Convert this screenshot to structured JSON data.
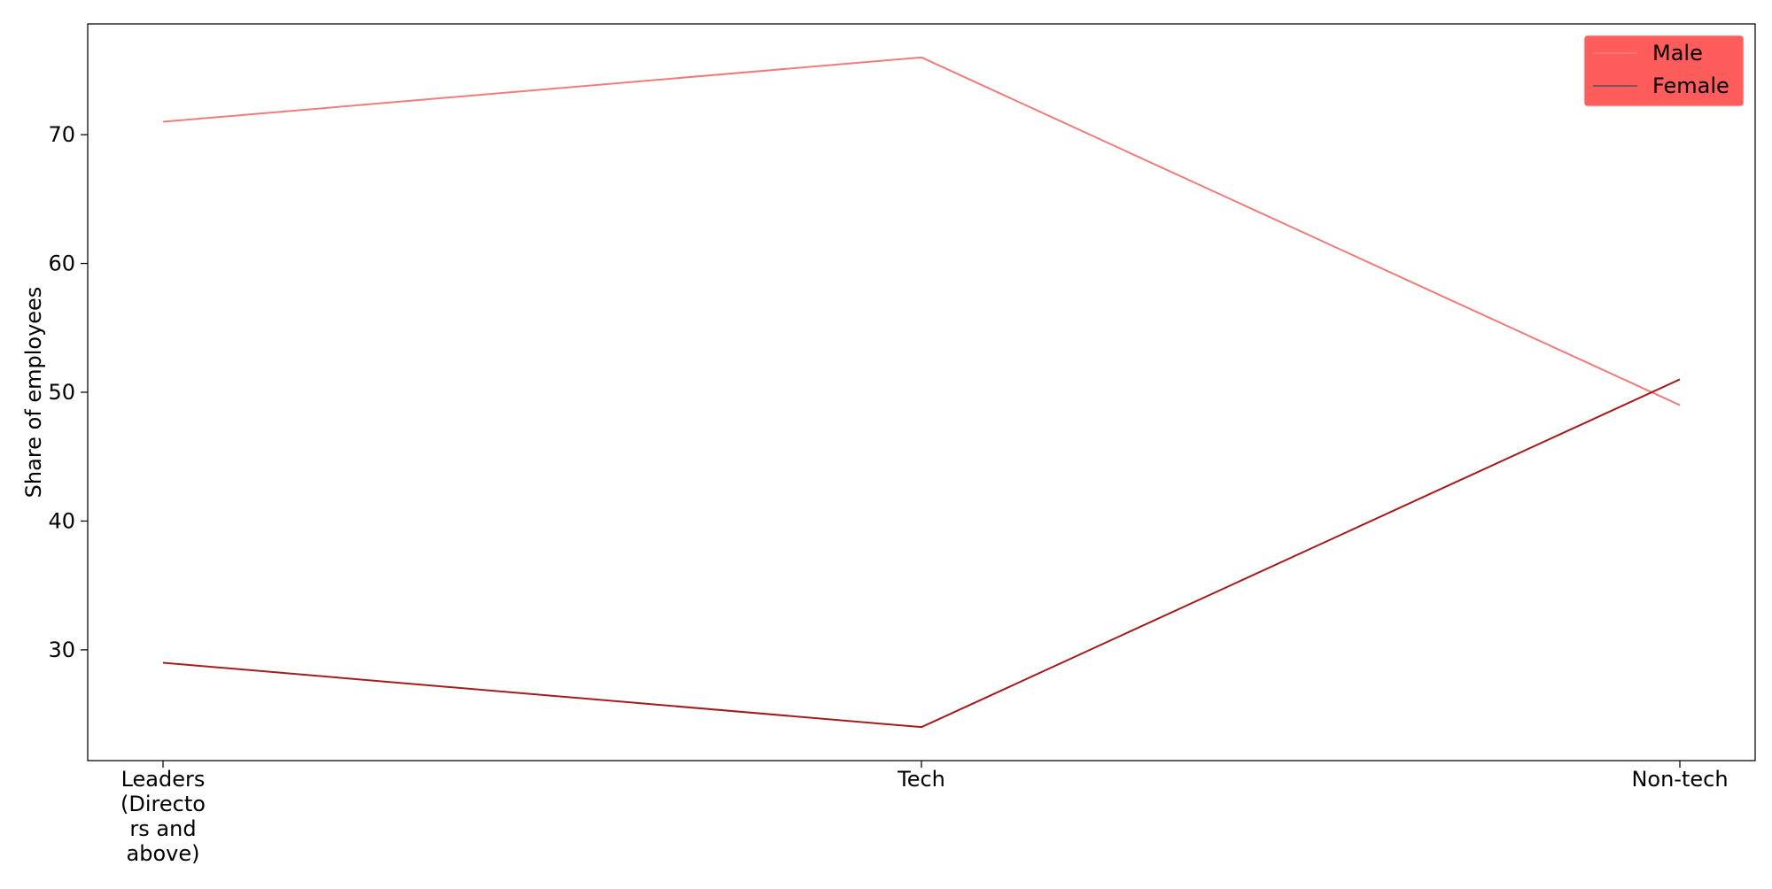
{
  "chart_data": {
    "type": "line",
    "categories": [
      "Leaders (Directors and above)",
      "Tech",
      "Non-tech"
    ],
    "category_display_lines": [
      [
        "Leaders",
        "(Directo",
        "rs and",
        "above)"
      ],
      [
        "Tech"
      ],
      [
        "Non-tech"
      ]
    ],
    "series": [
      {
        "name": "Male",
        "values": [
          71,
          76,
          49
        ],
        "color": "#f07c7c"
      },
      {
        "name": "Female",
        "values": [
          29,
          24,
          51
        ],
        "color": "#a31d1d"
      }
    ],
    "title": "",
    "xlabel": "",
    "ylabel": "Share of employees",
    "ylim": [
      21.4,
      78.6
    ],
    "yticks": [
      30,
      40,
      50,
      60,
      70
    ],
    "grid": false,
    "legend": {
      "placement": "top-right",
      "background_color": "#ff3333",
      "swatch_color": "#555555"
    }
  }
}
